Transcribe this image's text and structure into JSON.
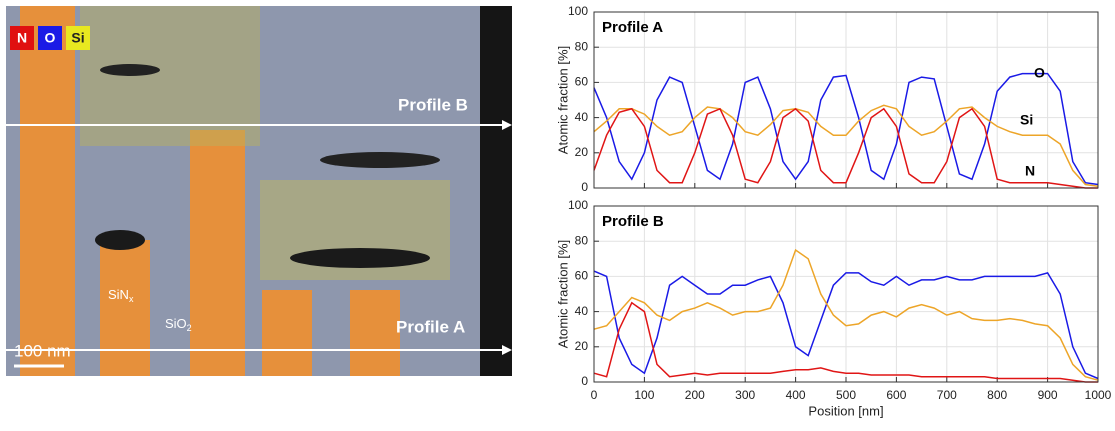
{
  "image": {
    "legend": [
      "N",
      "O",
      "Si"
    ],
    "profile_b": "Profile B",
    "profile_a": "Profile A",
    "sin": {
      "text": "SiN",
      "sub": "x"
    },
    "sio": {
      "text": "SiO",
      "sub": "2"
    },
    "scale_bar": "100 nm"
  },
  "chart_data": [
    {
      "type": "line",
      "title": "Profile A",
      "ylabel": "Atomic fraction [%]",
      "x": [
        0,
        25,
        50,
        75,
        100,
        125,
        150,
        175,
        200,
        225,
        250,
        275,
        300,
        325,
        350,
        375,
        400,
        425,
        450,
        475,
        500,
        525,
        550,
        575,
        600,
        625,
        650,
        675,
        700,
        725,
        750,
        775,
        800,
        825,
        850,
        875,
        900,
        925,
        950,
        975,
        1000
      ],
      "series": [
        {
          "name": "O",
          "color": "#1a1ae6",
          "values": [
            57,
            40,
            15,
            5,
            20,
            50,
            63,
            60,
            35,
            10,
            5,
            25,
            60,
            63,
            45,
            15,
            5,
            15,
            50,
            63,
            64,
            40,
            10,
            5,
            25,
            60,
            63,
            62,
            35,
            8,
            5,
            25,
            55,
            63,
            65,
            65,
            65,
            55,
            15,
            3,
            2
          ]
        },
        {
          "name": "Si",
          "color": "#eda528",
          "values": [
            32,
            38,
            45,
            45,
            42,
            35,
            30,
            32,
            40,
            46,
            45,
            40,
            32,
            30,
            36,
            44,
            45,
            43,
            35,
            30,
            30,
            38,
            44,
            47,
            45,
            35,
            30,
            32,
            38,
            45,
            46,
            40,
            35,
            32,
            30,
            30,
            30,
            25,
            10,
            2,
            1
          ]
        },
        {
          "name": "N",
          "color": "#e01515",
          "values": [
            10,
            30,
            43,
            45,
            35,
            10,
            3,
            3,
            20,
            42,
            45,
            30,
            5,
            3,
            15,
            40,
            45,
            38,
            10,
            3,
            3,
            20,
            40,
            45,
            35,
            8,
            3,
            3,
            15,
            40,
            45,
            35,
            5,
            3,
            3,
            3,
            3,
            2,
            1,
            0,
            0
          ]
        }
      ],
      "xlim": [
        0,
        1000
      ],
      "xticks": [
        0,
        100,
        200,
        300,
        400,
        500,
        600,
        700,
        800,
        900,
        1000
      ],
      "ylim": [
        0,
        100
      ],
      "yticks": [
        0,
        20,
        40,
        60,
        80,
        100
      ],
      "grid": true
    },
    {
      "type": "line",
      "title": "Profile B",
      "ylabel": "Atomic fraction [%]",
      "xlabel": "Position [nm]",
      "x": [
        0,
        25,
        50,
        75,
        100,
        125,
        150,
        175,
        200,
        225,
        250,
        275,
        300,
        325,
        350,
        375,
        400,
        425,
        450,
        475,
        500,
        525,
        550,
        575,
        600,
        625,
        650,
        675,
        700,
        725,
        750,
        775,
        800,
        825,
        850,
        875,
        900,
        925,
        950,
        975,
        1000
      ],
      "series": [
        {
          "color": "#1a1ae6",
          "values": [
            63,
            60,
            25,
            10,
            5,
            25,
            55,
            60,
            55,
            50,
            50,
            55,
            55,
            58,
            60,
            45,
            20,
            15,
            35,
            55,
            62,
            62,
            57,
            55,
            60,
            55,
            58,
            58,
            60,
            58,
            58,
            60,
            60,
            60,
            60,
            60,
            62,
            50,
            20,
            5,
            2
          ]
        },
        {
          "color": "#eda528",
          "values": [
            30,
            32,
            40,
            48,
            45,
            38,
            35,
            40,
            42,
            45,
            42,
            38,
            40,
            40,
            42,
            55,
            75,
            70,
            50,
            38,
            32,
            33,
            38,
            40,
            37,
            42,
            44,
            42,
            38,
            40,
            36,
            35,
            35,
            36,
            35,
            33,
            32,
            25,
            10,
            3,
            1
          ]
        },
        {
          "color": "#e01515",
          "values": [
            5,
            3,
            30,
            45,
            40,
            10,
            3,
            4,
            5,
            4,
            5,
            5,
            5,
            5,
            5,
            6,
            7,
            7,
            8,
            6,
            5,
            5,
            4,
            4,
            4,
            4,
            3,
            3,
            3,
            3,
            3,
            3,
            2,
            2,
            2,
            2,
            2,
            2,
            1,
            0,
            0
          ]
        }
      ],
      "xlim": [
        0,
        1000
      ],
      "xticks": [
        0,
        100,
        200,
        300,
        400,
        500,
        600,
        700,
        800,
        900,
        1000
      ],
      "ylim": [
        0,
        100
      ],
      "yticks": [
        0,
        20,
        40,
        60,
        80,
        100
      ],
      "grid": true
    }
  ]
}
